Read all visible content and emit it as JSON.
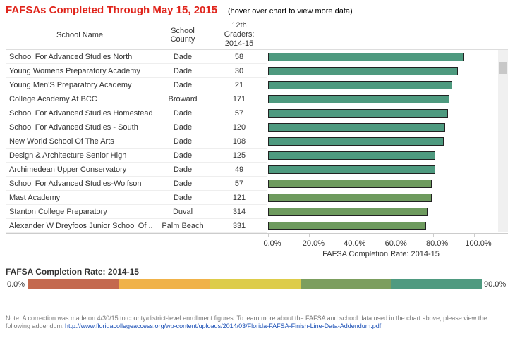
{
  "chart_data": {
    "type": "bar",
    "title": "FAFSAs Completed Through May 15, 2015",
    "subtitle": "(hover over chart to view more data)",
    "columns": [
      "School Name",
      "School County",
      "12th Graders: 2014-15"
    ],
    "categories": [
      "School For Advanced Studies North",
      "Young Womens Preparatory Academy",
      "Young Men'S Preparatory Academy",
      "College Academy At BCC",
      "School For Advanced Studies Homestead",
      "School For Advanced Studies - South",
      "New World School Of The Arts",
      "Design & Architecture Senior High",
      "Archimedean Upper Conservatory",
      "School For Advanced Studies-Wolfson",
      "Mast Academy",
      "Stanton College Preparatory",
      "Alexander W Dreyfoos Junior School Of .."
    ],
    "counties": [
      "Dade",
      "Dade",
      "Dade",
      "Broward",
      "Dade",
      "Dade",
      "Dade",
      "Dade",
      "Dade",
      "Dade",
      "Dade",
      "Duval",
      "Palm Beach"
    ],
    "graders": [
      58,
      30,
      21,
      171,
      57,
      120,
      108,
      125,
      49,
      57,
      121,
      314,
      331
    ],
    "values": [
      95.2,
      92.1,
      89.4,
      88.0,
      87.3,
      86.0,
      85.3,
      81.2,
      81.2,
      79.5,
      79.5,
      77.4,
      76.7
    ],
    "colors": [
      "#4e9a7f",
      "#4e9a7f",
      "#4e9a7f",
      "#4e9a7f",
      "#4e9a7f",
      "#4e9a7f",
      "#4e9a7f",
      "#4e9a7f",
      "#4e9a7f",
      "#6e9b5e",
      "#6e9b5e",
      "#6e9b5e",
      "#6e9b5e"
    ],
    "xlabel": "FAFSA Completion Rate: 2014-15",
    "xlim": [
      0,
      100
    ],
    "xticks": [
      {
        "value": 0,
        "label": "0.0%"
      },
      {
        "value": 20,
        "label": "20.0%"
      },
      {
        "value": 40,
        "label": "40.0%"
      },
      {
        "value": 60,
        "label": "60.0%"
      },
      {
        "value": 80,
        "label": "80.0%"
      },
      {
        "value": 100,
        "label": "100.0%"
      }
    ],
    "color_legend": {
      "title": "FAFSA Completion Rate: 2014-15",
      "labels": [
        "0.0%",
        "90.0%"
      ],
      "colors": [
        "#c4694e",
        "#f0b249",
        "#ddcc4a",
        "#7c9e5e",
        "#4f9a80"
      ]
    },
    "note": "Note: A correction was made on 4/30/15 to county/district-level enrollment figures.  To learn more about the FAFSA and school data used in the chart above, please view the following addendum:",
    "link": "http://www.floridacollegeaccess.org/wp-content/uploads/2014/03/Florida-FAFSA-Finish-Line-Data-Addendum.pdf"
  }
}
